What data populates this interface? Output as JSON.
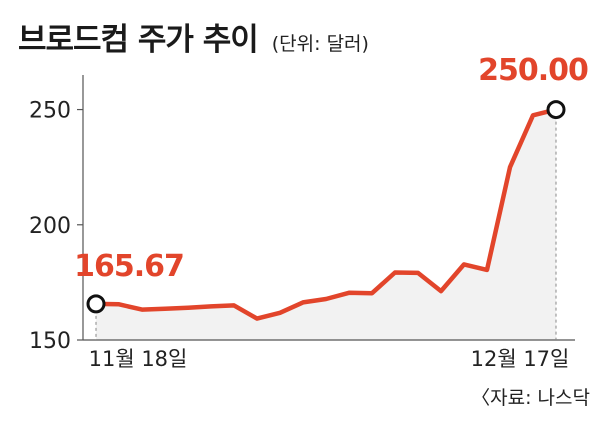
{
  "title": "브로드컴 주가 추이",
  "unit": "(단위: 달러)",
  "source": "〈자료: 나스닥",
  "accent": "#e2452b",
  "chart_data": {
    "type": "line",
    "x": [
      "11월 18일",
      "",
      "",
      "",
      "",
      "",
      "",
      "",
      "",
      "",
      "",
      "",
      "",
      "",
      "",
      "",
      "",
      "",
      "",
      "",
      "12월 17일"
    ],
    "xlabel": "",
    "ylabel": "",
    "ylim": [
      150,
      265
    ],
    "yticks": [
      150,
      200,
      250
    ],
    "xtick_labels": {
      "first": "11월 18일",
      "last": "12월 17일"
    },
    "series": [
      {
        "values": [
          165.67,
          165.5,
          163.2,
          163.6,
          164.0,
          164.6,
          165.0,
          159.3,
          161.8,
          166.3,
          167.8,
          170.5,
          170.3,
          179.3,
          179.1,
          171.2,
          182.8,
          180.4,
          225.0,
          247.5,
          250.0
        ]
      }
    ],
    "annotations": [
      {
        "index": 0,
        "label": "165.67"
      },
      {
        "index": 20,
        "label": "250.00"
      }
    ],
    "grid": false
  }
}
